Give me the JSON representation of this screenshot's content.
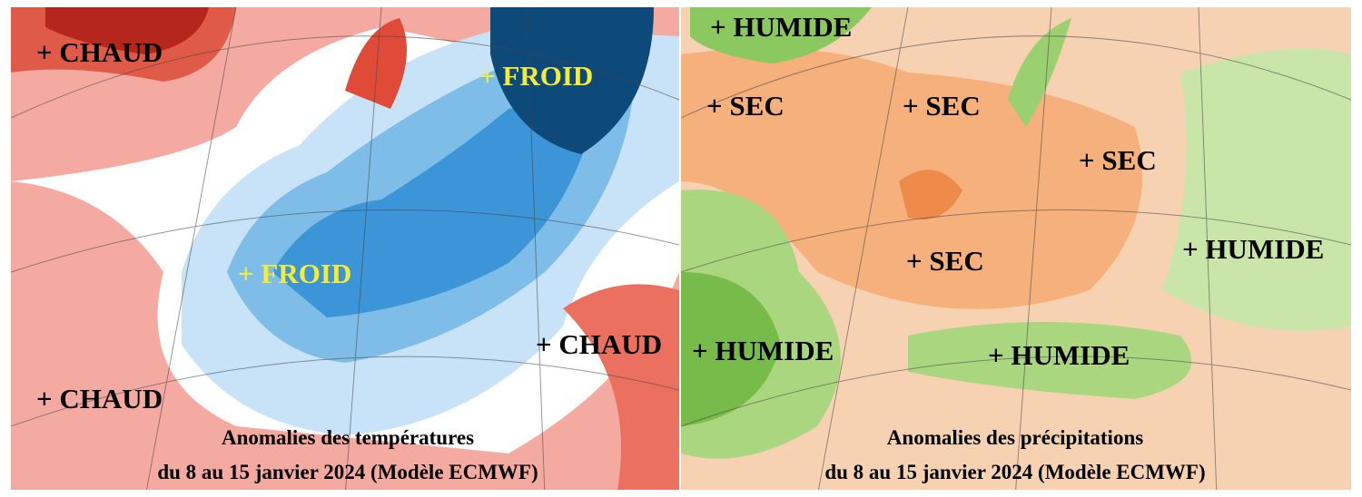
{
  "panels": [
    {
      "labels": [
        "+ CHAUD",
        "+ FROID",
        "+ FROID",
        "+ CHAUD",
        "+ CHAUD"
      ],
      "caption": [
        "Anomalies des températures",
        "du 8 au 15 janvier 2024 (Modèle ECMWF)"
      ]
    },
    {
      "labels": [
        "+ HUMIDE",
        "+ SEC",
        "+ SEC",
        "+ SEC",
        "+ HUMIDE",
        "+ SEC",
        "+ HUMIDE",
        "+ HUMIDE"
      ],
      "caption": [
        "Anomalies des précipitations",
        "du 8 au 15 janvier 2024 (Modèle ECMWF)"
      ]
    }
  ]
}
